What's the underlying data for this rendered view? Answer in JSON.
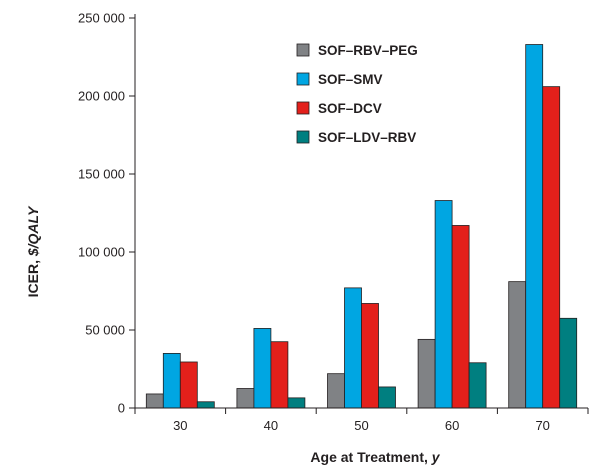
{
  "chart_data": {
    "type": "bar",
    "xlabel_prefix": "Age at Treatment, ",
    "xlabel_unit": "y",
    "ylabel_prefix": "ICER, ",
    "ylabel_unit": "$/QALY",
    "categories": [
      "30",
      "40",
      "50",
      "60",
      "70"
    ],
    "y_ticks": [
      "0",
      "50 000",
      "100 000",
      "150 000",
      "200 000",
      "250 000"
    ],
    "ylim": [
      0,
      250000
    ],
    "grid": false,
    "legend_position": "top-center",
    "series": [
      {
        "name": "SOF–RBV–PEG",
        "color": "#808285",
        "values": [
          9000,
          12500,
          22000,
          44000,
          81000
        ]
      },
      {
        "name": "SOF–SMV",
        "color": "#00a6e2",
        "values": [
          35000,
          51000,
          77000,
          133000,
          233000
        ]
      },
      {
        "name": "SOF–DCV",
        "color": "#e3201b",
        "values": [
          29500,
          42500,
          67000,
          117000,
          206000
        ]
      },
      {
        "name": "SOF–LDV–RBV",
        "color": "#007f80",
        "values": [
          4000,
          6500,
          13500,
          29000,
          57500
        ]
      }
    ]
  }
}
